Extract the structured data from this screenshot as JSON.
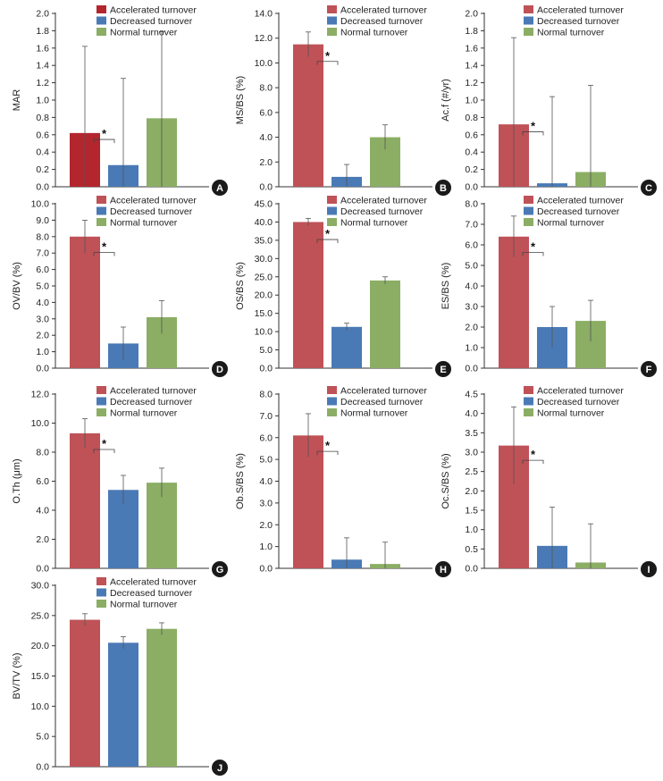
{
  "figure": {
    "legend": [
      "Accelerated turnover",
      "Decreased turnover",
      "Normal turnover"
    ]
  },
  "colors": {
    "accelerated": "#bf5257",
    "accelerated_panel_a": "#b3262e",
    "decreased": "#4a7ab5",
    "normal": "#8bae64",
    "badge": "#1a1a1a",
    "axis": "#333333",
    "error_bar": "#555555"
  },
  "chart_data": [
    {
      "panel": "A",
      "type": "bar",
      "ylabel": "MAR",
      "ylim": [
        0,
        2.0
      ],
      "ticks": [
        "0.0",
        "0.2",
        "0.4",
        "0.6",
        "0.8",
        "1.0",
        "1.2",
        "1.4",
        "1.6",
        "1.8",
        "2.0"
      ],
      "categories": [
        "Accelerated turnover",
        "Decreased turnover",
        "Normal turnover"
      ],
      "values": [
        0.62,
        0.25,
        0.79
      ],
      "errors": [
        1.0,
        1.0,
        1.0
      ],
      "error_style": "upper-to-lower",
      "significance": {
        "pair": [
          0,
          1
        ],
        "label": "*"
      }
    },
    {
      "panel": "B",
      "type": "bar",
      "ylabel": "MS/BS (%)",
      "ylim": [
        0,
        14.0
      ],
      "ticks": [
        "0.0",
        "2.0",
        "4.0",
        "6.0",
        "8.0",
        "10.0",
        "12.0",
        "14.0"
      ],
      "categories": [
        "Accelerated turnover",
        "Decreased turnover",
        "Normal turnover"
      ],
      "values": [
        11.5,
        0.8,
        4.0
      ],
      "errors": [
        1.0,
        1.0,
        1.0
      ],
      "significance": {
        "pair": [
          0,
          1
        ],
        "label": "*"
      }
    },
    {
      "panel": "C",
      "type": "bar",
      "ylabel": "Ac.f (#/yr)",
      "ylim": [
        0,
        2.0
      ],
      "ticks": [
        "0.0",
        "0.2",
        "0.4",
        "0.6",
        "0.8",
        "1.0",
        "1.2",
        "1.4",
        "1.6",
        "1.8",
        "2.0"
      ],
      "categories": [
        "Accelerated turnover",
        "Decreased turnover",
        "Normal turnover"
      ],
      "values": [
        0.72,
        0.04,
        0.17
      ],
      "errors": [
        1.0,
        1.0,
        1.0
      ],
      "significance": {
        "pair": [
          0,
          1
        ],
        "label": "*"
      }
    },
    {
      "panel": "D",
      "type": "bar",
      "ylabel": "OV/BV (%)",
      "ylim": [
        0,
        10.0
      ],
      "ticks": [
        "0.0",
        "1.0",
        "2.0",
        "3.0",
        "4.0",
        "5.0",
        "6.0",
        "7.0",
        "8.0",
        "9.0",
        "10.0"
      ],
      "categories": [
        "Accelerated turnover",
        "Decreased turnover",
        "Normal turnover"
      ],
      "values": [
        8.0,
        1.5,
        3.1
      ],
      "errors": [
        1.0,
        1.0,
        1.0
      ],
      "significance": {
        "pair": [
          0,
          1
        ],
        "label": "*"
      }
    },
    {
      "panel": "E",
      "type": "bar",
      "ylabel": "OS/BS (%)",
      "ylim": [
        0,
        45.0
      ],
      "ticks": [
        "0.0",
        "5.0",
        "10.0",
        "15.0",
        "20.0",
        "25.0",
        "30.0",
        "35.0",
        "40.0",
        "45.0"
      ],
      "categories": [
        "Accelerated turnover",
        "Decreased turnover",
        "Normal turnover"
      ],
      "values": [
        40.0,
        11.3,
        24.0
      ],
      "errors": [
        1.0,
        1.0,
        1.0
      ],
      "significance": {
        "pair": [
          0,
          1
        ],
        "label": "*"
      }
    },
    {
      "panel": "F",
      "type": "bar",
      "ylabel": "ES/BS (%)",
      "ylim": [
        0,
        8.0
      ],
      "ticks": [
        "0.0",
        "1.0",
        "2.0",
        "3.0",
        "4.0",
        "5.0",
        "6.0",
        "7.0",
        "8.0"
      ],
      "categories": [
        "Accelerated turnover",
        "Decreased turnover",
        "Normal turnover"
      ],
      "values": [
        6.4,
        2.0,
        2.3
      ],
      "errors": [
        1.0,
        1.0,
        1.0
      ],
      "significance": {
        "pair": [
          0,
          1
        ],
        "label": "*"
      }
    },
    {
      "panel": "G",
      "type": "bar",
      "ylabel": "O.Th (μm)",
      "ylim": [
        0,
        12.0
      ],
      "ticks": [
        "0.0",
        "2.0",
        "4.0",
        "6.0",
        "8.0",
        "10.0",
        "12.0"
      ],
      "categories": [
        "Accelerated turnover",
        "Decreased turnover",
        "Normal turnover"
      ],
      "values": [
        9.3,
        5.4,
        5.9
      ],
      "errors": [
        1.0,
        1.0,
        1.0
      ],
      "significance": {
        "pair": [
          0,
          1
        ],
        "label": "*"
      }
    },
    {
      "panel": "H",
      "type": "bar",
      "ylabel": "Ob.S/BS (%)",
      "ylim": [
        0,
        8.0
      ],
      "ticks": [
        "0.0",
        "1.0",
        "2.0",
        "3.0",
        "4.0",
        "5.0",
        "6.0",
        "7.0",
        "8.0"
      ],
      "categories": [
        "Accelerated turnover",
        "Decreased turnover",
        "Normal turnover"
      ],
      "values": [
        6.1,
        0.4,
        0.2
      ],
      "errors": [
        1.0,
        1.0,
        1.0
      ],
      "significance": {
        "pair": [
          0,
          1
        ],
        "label": "*"
      }
    },
    {
      "panel": "I",
      "type": "bar",
      "ylabel": "Oc.S/BS (%)",
      "ylim": [
        0,
        4.5
      ],
      "ticks": [
        "0.0",
        "0.5",
        "1.0",
        "1.5",
        "2.0",
        "2.5",
        "3.0",
        "3.5",
        "4.0",
        "4.5"
      ],
      "categories": [
        "Accelerated turnover",
        "Decreased turnover",
        "Normal turnover"
      ],
      "values": [
        3.17,
        0.58,
        0.15
      ],
      "errors": [
        1.0,
        1.0,
        1.0
      ],
      "significance": {
        "pair": [
          0,
          1
        ],
        "label": "*"
      }
    },
    {
      "panel": "J",
      "type": "bar",
      "ylabel": "BV/TV (%)",
      "ylim": [
        0,
        30.0
      ],
      "ticks": [
        "0.0",
        "5.0",
        "10.0",
        "15.0",
        "20.0",
        "25.0",
        "30.0"
      ],
      "categories": [
        "Accelerated turnover",
        "Decreased turnover",
        "Normal turnover"
      ],
      "values": [
        24.3,
        20.5,
        22.8
      ],
      "errors": [
        1.0,
        1.0,
        1.0
      ],
      "significance": null
    }
  ]
}
